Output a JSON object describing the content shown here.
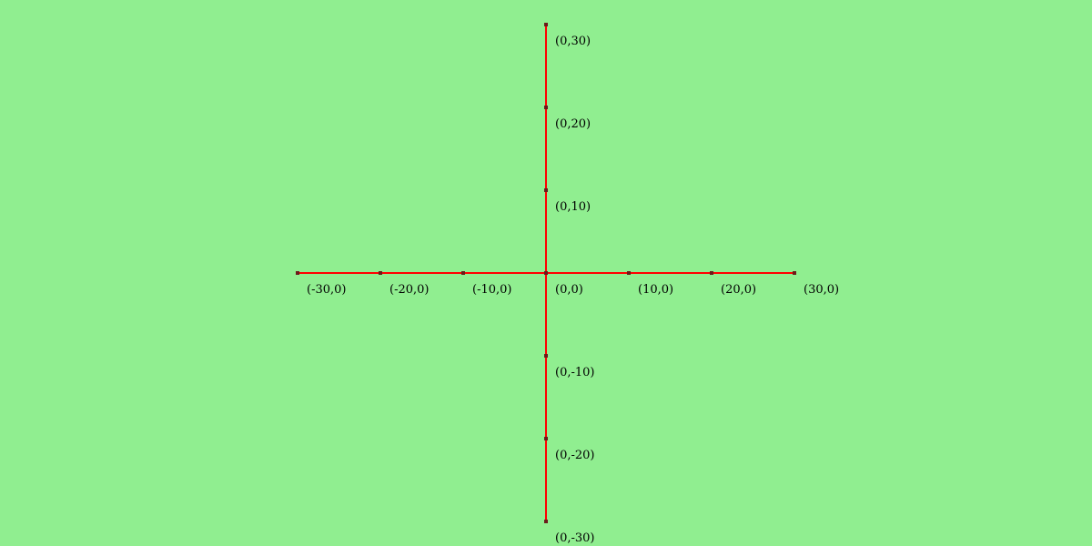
{
  "colors": {
    "background": "#90EE90",
    "axis": "#FF0000",
    "tick_marker": "#6B1A1A",
    "label": "#000000"
  },
  "axes": {
    "x": {
      "range": [
        -30,
        30
      ],
      "ticks": [
        -30,
        -20,
        -10,
        10,
        20,
        30
      ],
      "tick_labels": [
        "(-30,0)",
        "(-20,0)",
        "(-10,0)",
        "(10,0)",
        "(20,0)",
        "(30,0)"
      ]
    },
    "y": {
      "range": [
        -30,
        30
      ],
      "ticks": [
        30,
        20,
        10,
        -10,
        -20,
        -30
      ],
      "tick_labels": [
        "(0,30)",
        "(0,20)",
        "(0,10)",
        "(0,-10)",
        "(0,-20)",
        "(0,-30)"
      ]
    },
    "origin_label": "(0,0)"
  }
}
